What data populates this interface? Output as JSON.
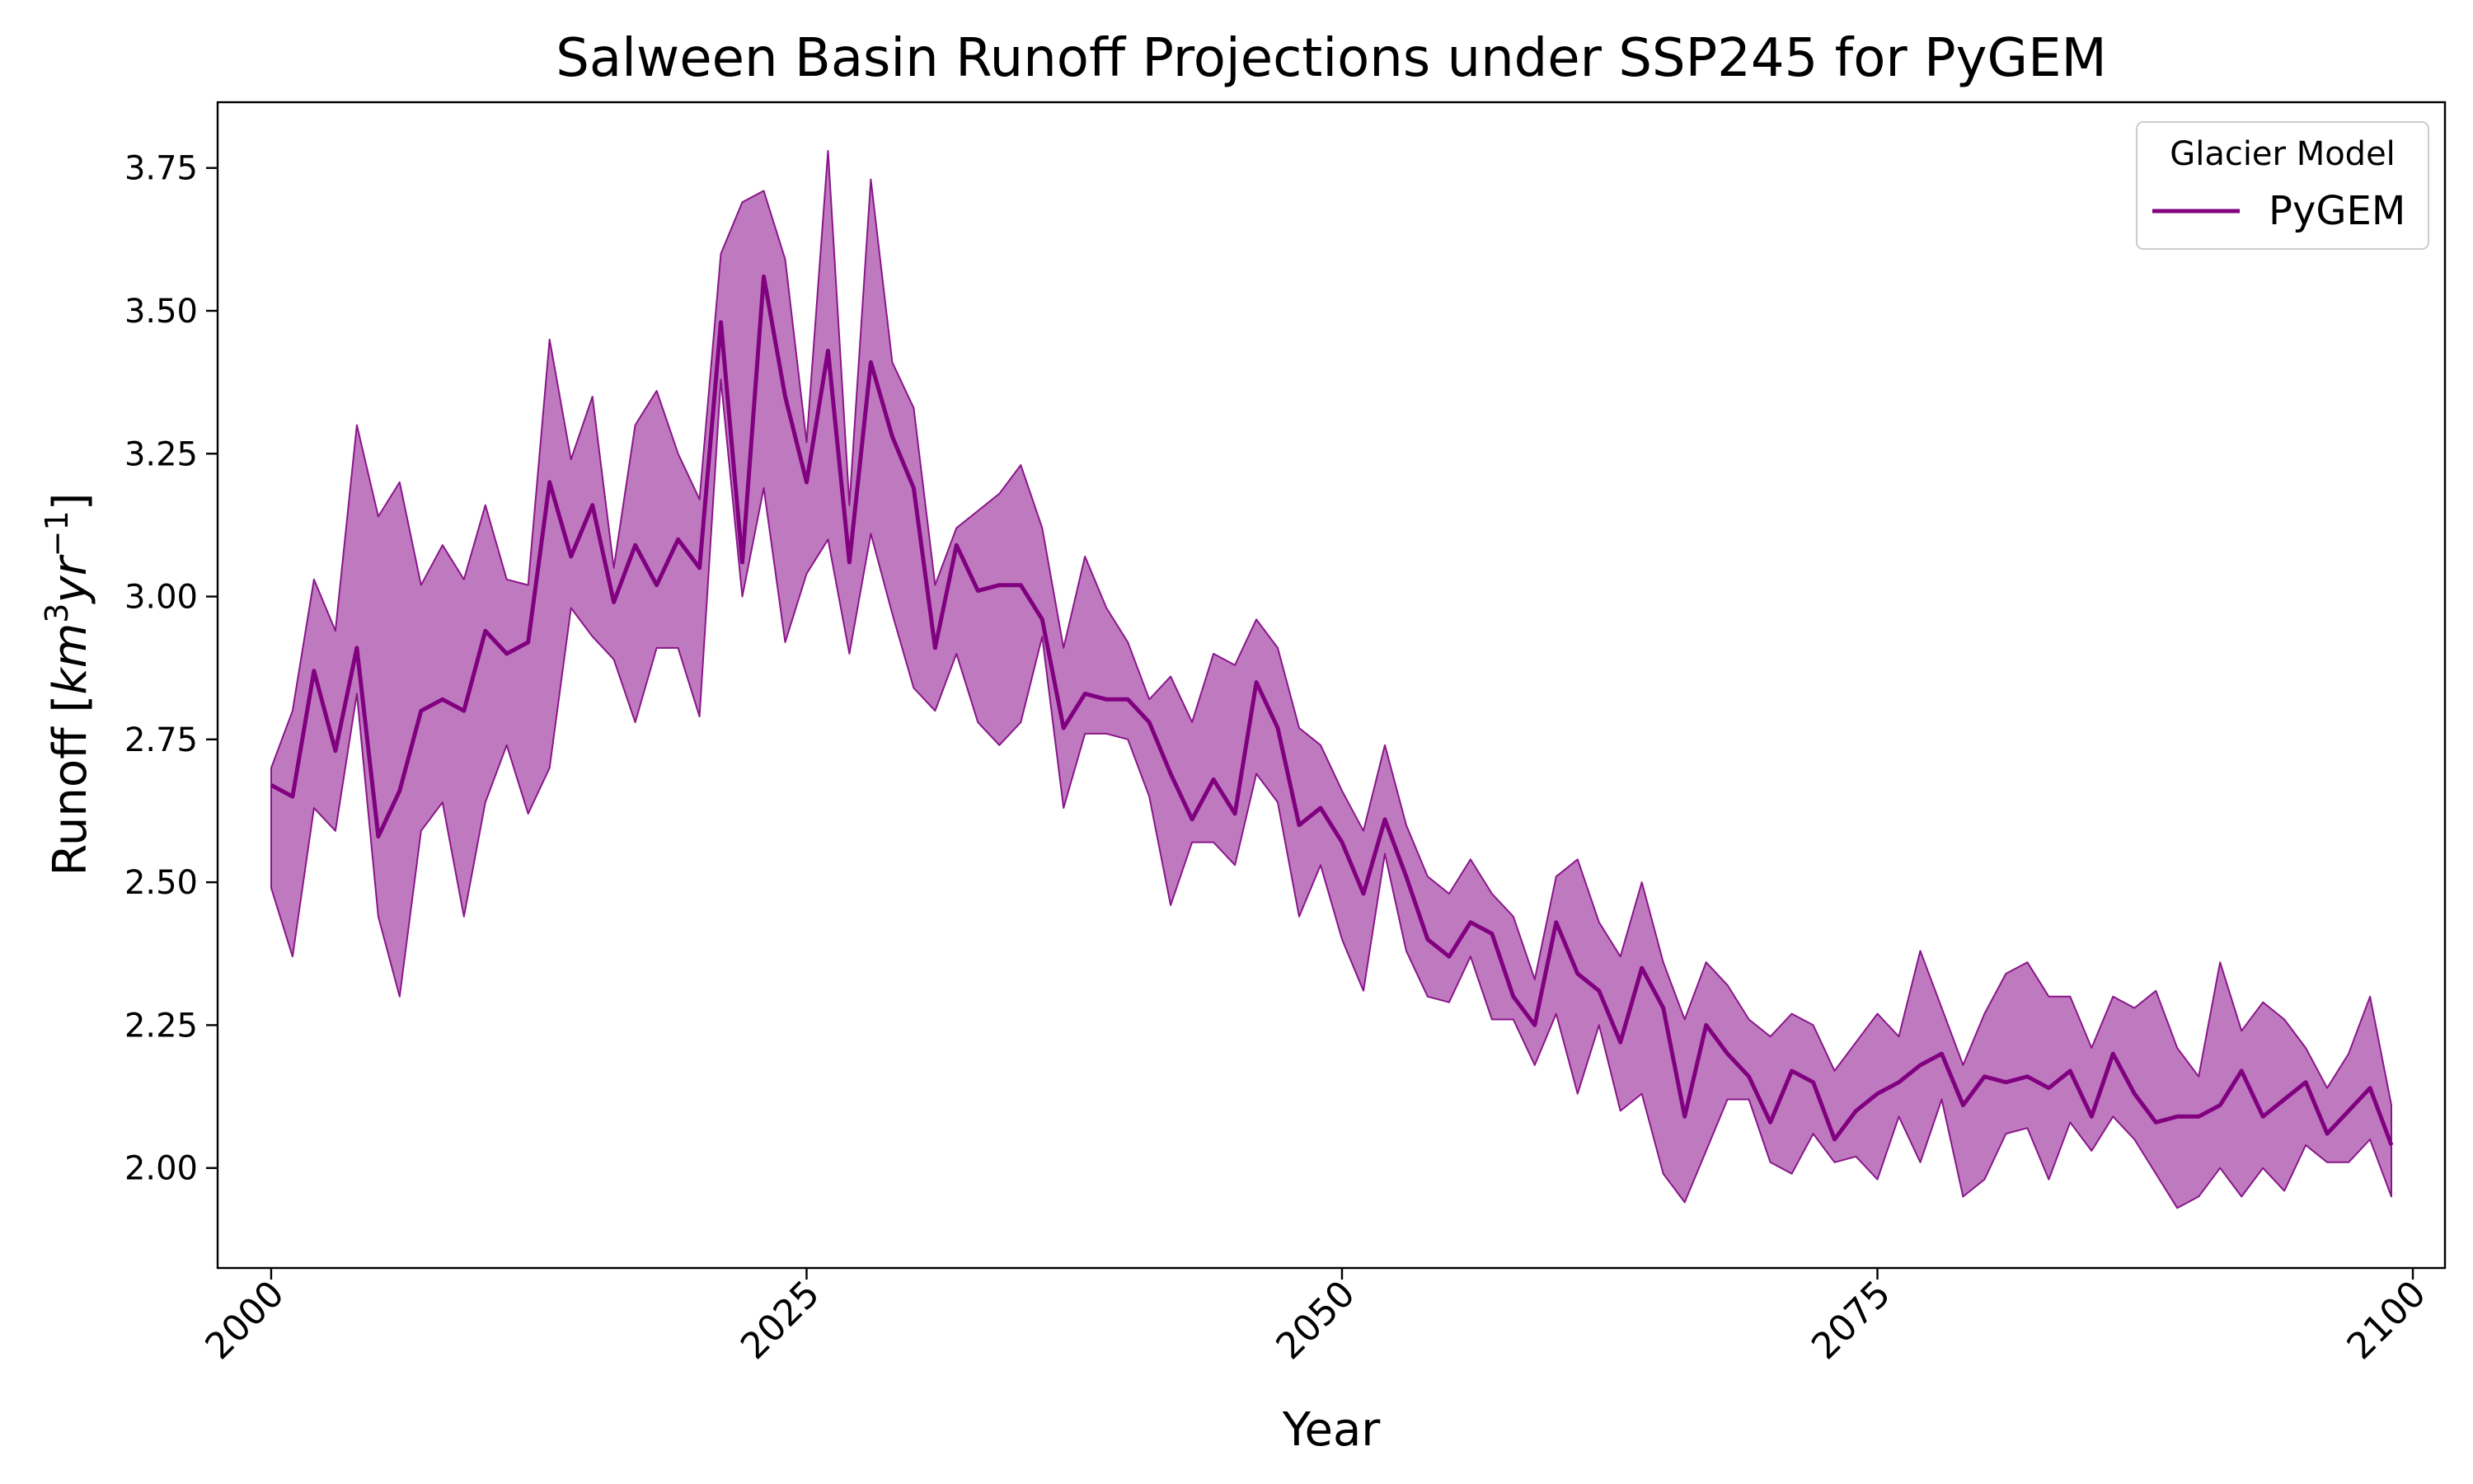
{
  "chart_data": {
    "type": "line",
    "title": "Salween Basin Runoff Projections under SSP245 for PyGEM",
    "xlabel": "Year",
    "ylabel_main": "Runoff [",
    "ylabel_unit_a": "km",
    "ylabel_unit_a_exp": "3",
    "ylabel_unit_b": "yr",
    "ylabel_unit_b_exp": "−1",
    "ylabel_end": "]",
    "xlim": [
      1997.5,
      2101.5
    ],
    "ylim": [
      1.825,
      3.865
    ],
    "x_ticks": [
      2000,
      2025,
      2050,
      2075,
      2100
    ],
    "x_tick_labels": [
      "2000",
      "2025",
      "2050",
      "2075",
      "2100"
    ],
    "y_ticks": [
      2.0,
      2.25,
      2.5,
      2.75,
      3.0,
      3.25,
      3.5,
      3.75
    ],
    "y_tick_labels": [
      "2.00",
      "2.25",
      "2.50",
      "2.75",
      "3.00",
      "3.25",
      "3.50",
      "3.75"
    ],
    "grid": false,
    "legend": {
      "title": "Glacier Model",
      "placement": "top-right"
    },
    "colors": {
      "line": "#800080",
      "band_fill": "#bf7abf",
      "band_edge": "#8a158a"
    },
    "x": [
      2000,
      2001,
      2002,
      2003,
      2004,
      2005,
      2006,
      2007,
      2008,
      2009,
      2010,
      2011,
      2012,
      2013,
      2014,
      2015,
      2016,
      2017,
      2018,
      2019,
      2020,
      2021,
      2022,
      2023,
      2024,
      2025,
      2026,
      2027,
      2028,
      2029,
      2030,
      2031,
      2032,
      2033,
      2034,
      2035,
      2036,
      2037,
      2038,
      2039,
      2040,
      2041,
      2042,
      2043,
      2044,
      2045,
      2046,
      2047,
      2048,
      2049,
      2050,
      2051,
      2052,
      2053,
      2054,
      2055,
      2056,
      2057,
      2058,
      2059,
      2060,
      2061,
      2062,
      2063,
      2064,
      2065,
      2066,
      2067,
      2068,
      2069,
      2070,
      2071,
      2072,
      2073,
      2074,
      2075,
      2076,
      2077,
      2078,
      2079,
      2080,
      2081,
      2082,
      2083,
      2084,
      2085,
      2086,
      2087,
      2088,
      2089,
      2090,
      2091,
      2092,
      2093,
      2094,
      2095,
      2096,
      2097,
      2098,
      2099
    ],
    "series": [
      {
        "name": "PyGEM",
        "values": [
          2.67,
          2.65,
          2.87,
          2.73,
          2.91,
          2.58,
          2.66,
          2.8,
          2.82,
          2.8,
          2.94,
          2.9,
          2.92,
          3.2,
          3.07,
          3.16,
          2.99,
          3.09,
          3.02,
          3.1,
          3.05,
          3.48,
          3.06,
          3.56,
          3.35,
          3.2,
          3.43,
          3.06,
          3.41,
          3.28,
          3.19,
          2.91,
          3.09,
          3.01,
          3.02,
          3.02,
          2.96,
          2.77,
          2.83,
          2.82,
          2.82,
          2.78,
          2.69,
          2.61,
          2.68,
          2.62,
          2.85,
          2.77,
          2.6,
          2.63,
          2.57,
          2.48,
          2.61,
          2.51,
          2.4,
          2.37,
          2.43,
          2.41,
          2.3,
          2.25,
          2.43,
          2.34,
          2.31,
          2.22,
          2.35,
          2.28,
          2.09,
          2.25,
          2.2,
          2.16,
          2.08,
          2.17,
          2.15,
          2.05,
          2.1,
          2.13,
          2.15,
          2.18,
          2.2,
          2.11,
          2.16,
          2.15,
          2.16,
          2.14,
          2.17,
          2.09,
          2.2,
          2.13,
          2.08,
          2.09,
          2.09,
          2.11,
          2.17,
          2.09,
          2.12,
          2.15,
          2.06,
          2.1,
          2.14,
          2.04
        ],
        "lower": [
          2.49,
          2.37,
          2.63,
          2.59,
          2.83,
          2.44,
          2.3,
          2.59,
          2.64,
          2.44,
          2.64,
          2.74,
          2.62,
          2.7,
          2.98,
          2.93,
          2.89,
          2.78,
          2.91,
          2.91,
          2.79,
          3.38,
          3.0,
          3.19,
          2.92,
          3.04,
          3.1,
          2.9,
          3.11,
          2.97,
          2.84,
          2.8,
          2.9,
          2.78,
          2.74,
          2.78,
          2.93,
          2.63,
          2.76,
          2.76,
          2.75,
          2.65,
          2.46,
          2.57,
          2.57,
          2.53,
          2.69,
          2.64,
          2.44,
          2.53,
          2.4,
          2.31,
          2.55,
          2.38,
          2.3,
          2.29,
          2.37,
          2.26,
          2.26,
          2.18,
          2.27,
          2.13,
          2.25,
          2.1,
          2.13,
          1.99,
          1.94,
          2.03,
          2.12,
          2.12,
          2.01,
          1.99,
          2.06,
          2.01,
          2.02,
          1.98,
          2.09,
          2.01,
          2.12,
          1.95,
          1.98,
          2.06,
          2.07,
          1.98,
          2.08,
          2.03,
          2.09,
          2.05,
          1.99,
          1.93,
          1.95,
          2.0,
          1.95,
          2.0,
          1.96,
          2.04,
          2.01,
          2.01,
          2.05,
          1.95
        ],
        "upper": [
          2.7,
          2.8,
          3.03,
          2.94,
          3.3,
          3.14,
          3.2,
          3.02,
          3.09,
          3.03,
          3.16,
          3.03,
          3.02,
          3.45,
          3.24,
          3.35,
          3.05,
          3.3,
          3.36,
          3.25,
          3.17,
          3.6,
          3.69,
          3.71,
          3.59,
          3.27,
          3.78,
          3.16,
          3.73,
          3.41,
          3.33,
          3.02,
          3.12,
          3.15,
          3.18,
          3.23,
          3.12,
          2.91,
          3.07,
          2.98,
          2.92,
          2.82,
          2.86,
          2.78,
          2.9,
          2.88,
          2.96,
          2.91,
          2.77,
          2.74,
          2.66,
          2.59,
          2.74,
          2.6,
          2.51,
          2.48,
          2.54,
          2.48,
          2.44,
          2.33,
          2.51,
          2.54,
          2.43,
          2.37,
          2.5,
          2.36,
          2.26,
          2.36,
          2.32,
          2.26,
          2.23,
          2.27,
          2.25,
          2.17,
          2.22,
          2.27,
          2.23,
          2.38,
          2.28,
          2.18,
          2.27,
          2.34,
          2.36,
          2.3,
          2.3,
          2.21,
          2.3,
          2.28,
          2.31,
          2.21,
          2.16,
          2.36,
          2.24,
          2.29,
          2.26,
          2.21,
          2.14,
          2.2,
          2.3,
          2.11
        ]
      }
    ]
  }
}
